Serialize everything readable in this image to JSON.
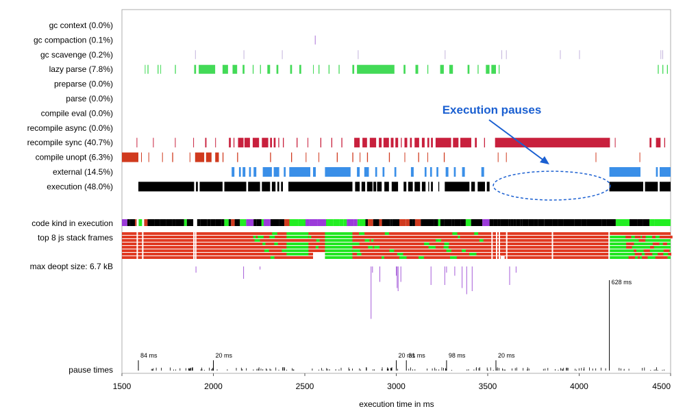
{
  "chart_data": {
    "type": "timeline",
    "xlabel": "execution time in ms",
    "xlim": [
      1500,
      4500
    ],
    "xticks": [
      1500,
      2000,
      2500,
      3000,
      3500,
      4000,
      4500
    ],
    "rows": [
      {
        "label": "gc context (0.0%)",
        "color": "#9b59d0",
        "intervals": []
      },
      {
        "label": "gc compaction (0.1%)",
        "color": "#9b59d0",
        "intervals": [
          [
            2555,
            2558
          ]
        ]
      },
      {
        "label": "gc scavenge (0.2%)",
        "color": "#b9a6d6",
        "intervals": [
          [
            1900,
            1902
          ],
          [
            2165,
            2167
          ],
          [
            2375,
            2377
          ],
          [
            2790,
            2792
          ],
          [
            3265,
            3267
          ],
          [
            3575,
            3577
          ],
          [
            3600,
            3602
          ],
          [
            3895,
            3897
          ],
          [
            4000,
            4002
          ],
          [
            4445,
            4447
          ],
          [
            4455,
            4457
          ]
        ]
      },
      {
        "label": "lazy parse (7.8%)",
        "color": "#22d33a",
        "intervals": [
          [
            1625,
            1628
          ],
          [
            1640,
            1645
          ],
          [
            1695,
            1700
          ],
          [
            1710,
            1712
          ],
          [
            1790,
            1795
          ],
          [
            1895,
            1905
          ],
          [
            1920,
            2010
          ],
          [
            2050,
            2080
          ],
          [
            2105,
            2130
          ],
          [
            2160,
            2170
          ],
          [
            2215,
            2220
          ],
          [
            2255,
            2260
          ],
          [
            2295,
            2310
          ],
          [
            2345,
            2355
          ],
          [
            2420,
            2430
          ],
          [
            2470,
            2480
          ],
          [
            2545,
            2548
          ],
          [
            2575,
            2580
          ],
          [
            2630,
            2635
          ],
          [
            2685,
            2690
          ],
          [
            2760,
            2770
          ],
          [
            2785,
            2990
          ],
          [
            3040,
            3050
          ],
          [
            3105,
            3120
          ],
          [
            3170,
            3175
          ],
          [
            3240,
            3260
          ],
          [
            3290,
            3310
          ],
          [
            3390,
            3400
          ],
          [
            3445,
            3450
          ],
          [
            3490,
            3510
          ],
          [
            3520,
            3545
          ],
          [
            3560,
            3565
          ],
          [
            4430,
            4435
          ],
          [
            4455,
            4460
          ],
          [
            4480,
            4485
          ]
        ]
      },
      {
        "label": "preparse (0.0%)",
        "color": "#888888",
        "intervals": []
      },
      {
        "label": "parse (0.0%)",
        "color": "#888888",
        "intervals": []
      },
      {
        "label": "compile eval (0.0%)",
        "color": "#888888",
        "intervals": []
      },
      {
        "label": "recompile async (0.0%)",
        "color": "#888888",
        "intervals": []
      },
      {
        "label": "recompile sync (40.7%)",
        "color": "#c8203d",
        "intervals": [
          [
            1580,
            1582
          ],
          [
            1670,
            1673
          ],
          [
            1790,
            1792
          ],
          [
            1890,
            1893
          ],
          [
            1955,
            1962
          ],
          [
            2010,
            2013
          ],
          [
            2085,
            2095
          ],
          [
            2110,
            2115
          ],
          [
            2135,
            2165
          ],
          [
            2170,
            2200
          ],
          [
            2215,
            2250
          ],
          [
            2265,
            2300
          ],
          [
            2310,
            2320
          ],
          [
            2330,
            2340
          ],
          [
            2355,
            2360
          ],
          [
            2380,
            2385
          ],
          [
            2455,
            2460
          ],
          [
            2515,
            2518
          ],
          [
            2585,
            2590
          ],
          [
            2645,
            2650
          ],
          [
            2700,
            2705
          ],
          [
            2770,
            2800
          ],
          [
            2815,
            2840
          ],
          [
            2855,
            2890
          ],
          [
            2905,
            2920
          ],
          [
            2930,
            2960
          ],
          [
            2970,
            2985
          ],
          [
            2995,
            3010
          ],
          [
            3025,
            3030
          ],
          [
            3045,
            3060
          ],
          [
            3075,
            3085
          ],
          [
            3100,
            3125
          ],
          [
            3140,
            3155
          ],
          [
            3170,
            3180
          ],
          [
            3190,
            3200
          ],
          [
            3215,
            3300
          ],
          [
            3310,
            3340
          ],
          [
            3350,
            3410
          ],
          [
            3430,
            3440
          ],
          [
            3480,
            3485
          ],
          [
            3540,
            4168
          ],
          [
            4195,
            4198
          ],
          [
            4385,
            4395
          ],
          [
            4420,
            4445
          ],
          [
            4465,
            4470
          ]
        ]
      },
      {
        "label": "compile unopt (6.3%)",
        "color": "#d03a1e",
        "intervals": [
          [
            1500,
            1590
          ],
          [
            1605,
            1608
          ],
          [
            1645,
            1648
          ],
          [
            1720,
            1722
          ],
          [
            1775,
            1780
          ],
          [
            1870,
            1873
          ],
          [
            1900,
            1950
          ],
          [
            1960,
            1990
          ],
          [
            2010,
            2030
          ],
          [
            2050,
            2055
          ],
          [
            2130,
            2135
          ],
          [
            2310,
            2315
          ],
          [
            2425,
            2430
          ],
          [
            2505,
            2508
          ],
          [
            2575,
            2578
          ],
          [
            2675,
            2680
          ],
          [
            2760,
            2765
          ],
          [
            2800,
            2803
          ],
          [
            2840,
            2845
          ],
          [
            2960,
            2965
          ],
          [
            3045,
            3048
          ],
          [
            3120,
            3125
          ],
          [
            3170,
            3173
          ],
          [
            3260,
            3265
          ],
          [
            3555,
            3558
          ],
          [
            3600,
            3603
          ],
          [
            4090,
            4093
          ],
          [
            4330,
            4333
          ]
        ]
      },
      {
        "label": "external (14.5%)",
        "color": "#3a8fe8",
        "intervals": [
          [
            2100,
            2115
          ],
          [
            2140,
            2150
          ],
          [
            2160,
            2175
          ],
          [
            2195,
            2205
          ],
          [
            2220,
            2235
          ],
          [
            2270,
            2320
          ],
          [
            2330,
            2360
          ],
          [
            2385,
            2395
          ],
          [
            2415,
            2530
          ],
          [
            2545,
            2560
          ],
          [
            2610,
            2750
          ],
          [
            2785,
            2800
          ],
          [
            2825,
            2850
          ],
          [
            2885,
            2895
          ],
          [
            2925,
            2935
          ],
          [
            2990,
            3000
          ],
          [
            3080,
            3095
          ],
          [
            3155,
            3165
          ],
          [
            3185,
            3195
          ],
          [
            3220,
            3230
          ],
          [
            3270,
            3285
          ],
          [
            3315,
            3325
          ],
          [
            3360,
            3375
          ],
          [
            3465,
            3480
          ],
          [
            4165,
            4335
          ],
          [
            4420,
            4430
          ],
          [
            4440,
            4500
          ]
        ]
      },
      {
        "label": "execution (48.0%)",
        "color": "#000000",
        "intervals": [
          [
            1590,
            1895
          ],
          [
            1905,
            1915
          ],
          [
            1925,
            2050
          ],
          [
            2060,
            2180
          ],
          [
            2190,
            2255
          ],
          [
            2265,
            2310
          ],
          [
            2320,
            2340
          ],
          [
            2350,
            2360
          ],
          [
            2370,
            2380
          ],
          [
            2410,
            2760
          ],
          [
            2775,
            2800
          ],
          [
            2810,
            2830
          ],
          [
            2840,
            2870
          ],
          [
            2875,
            2890
          ],
          [
            2895,
            2920
          ],
          [
            2935,
            2960
          ],
          [
            2975,
            3010
          ],
          [
            3040,
            3055
          ],
          [
            3065,
            3090
          ],
          [
            3100,
            3130
          ],
          [
            3140,
            3160
          ],
          [
            3175,
            3180
          ],
          [
            3190,
            3200
          ],
          [
            3230,
            3235
          ],
          [
            3265,
            3400
          ],
          [
            3410,
            3430
          ],
          [
            3445,
            3485
          ],
          [
            3495,
            3510
          ],
          [
            4165,
            4350
          ],
          [
            4360,
            4430
          ],
          [
            4440,
            4500
          ]
        ]
      }
    ],
    "code_kind_label": "code kind in execution",
    "stack_label": "top 8 js stack frames",
    "deopt_label": "max deopt size: 6.7 kB",
    "deopt_events": [
      [
        1905,
        0.1
      ],
      [
        2165,
        0.2
      ],
      [
        2255,
        0.05
      ],
      [
        2862,
        0.85
      ],
      [
        2870,
        0.1
      ],
      [
        2910,
        0.25
      ],
      [
        3000,
        0.15
      ],
      [
        3005,
        0.35
      ],
      [
        3010,
        0.4
      ],
      [
        3025,
        0.25
      ],
      [
        3190,
        0.3
      ],
      [
        3265,
        0.3
      ],
      [
        3275,
        0.1
      ],
      [
        3320,
        0.15
      ],
      [
        3360,
        0.35
      ],
      [
        3385,
        0.45
      ],
      [
        3415,
        0.4
      ],
      [
        3620,
        0.3
      ],
      [
        3655,
        0.1
      ]
    ],
    "pause_label": "pause times",
    "pause_max_ms": 628,
    "pause_events": [
      [
        1590,
        84
      ],
      [
        2000,
        20
      ],
      [
        3000,
        20
      ],
      [
        3055,
        31
      ],
      [
        3275,
        98
      ],
      [
        3545,
        20
      ],
      [
        4165,
        628
      ]
    ],
    "pause_annotations": [
      {
        "x": 1590,
        "text": "84 ms"
      },
      {
        "x": 2000,
        "text": "20 ms"
      },
      {
        "x": 3000,
        "text": "20 ms"
      },
      {
        "x": 3055,
        "text": "31 ms"
      },
      {
        "x": 3275,
        "text": "98 ms"
      },
      {
        "x": 3545,
        "text": "20 ms"
      },
      {
        "x": 4165,
        "text": "628 ms"
      }
    ],
    "annotation": {
      "text": "Execution pauses",
      "ellipse_x": [
        3530,
        4170
      ]
    }
  }
}
